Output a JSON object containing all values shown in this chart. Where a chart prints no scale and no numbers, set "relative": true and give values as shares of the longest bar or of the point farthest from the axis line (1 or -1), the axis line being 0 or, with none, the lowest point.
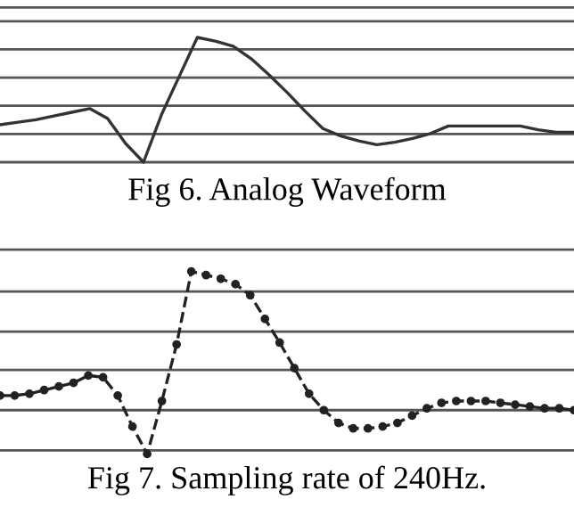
{
  "chart_data": [
    {
      "type": "line",
      "title": "Fig 6. Analog Waveform",
      "relative": true,
      "grid": "y",
      "marker": "none",
      "line_style": "solid",
      "categories": [
        null,
        null,
        null,
        null,
        null,
        null,
        null,
        null,
        null,
        null,
        null,
        null,
        null,
        null,
        null,
        null,
        null,
        null,
        null,
        null,
        null,
        null,
        null,
        null,
        null,
        null,
        null,
        null,
        null,
        null,
        null,
        null,
        null
      ],
      "series": [
        {
          "color": "#333333",
          "values": [
            0.3,
            0.32,
            0.34,
            0.37,
            0.4,
            0.43,
            0.35,
            0.15,
            0.0,
            0.38,
            0.69,
            1.0,
            0.97,
            0.93,
            0.83,
            0.7,
            0.56,
            0.41,
            0.27,
            0.21,
            0.17,
            0.14,
            0.16,
            0.19,
            0.23,
            0.29,
            0.29,
            0.29,
            0.29,
            0.29,
            0.26,
            0.24,
            0.24
          ]
        }
      ]
    },
    {
      "type": "line",
      "title": "Fig 7. Sampling rate of 240Hz.",
      "relative": true,
      "grid": "y",
      "marker": "circle",
      "line_style": "dashed",
      "categories": [
        null,
        null,
        null,
        null,
        null,
        null,
        null,
        null,
        null,
        null,
        null,
        null,
        null,
        null,
        null,
        null,
        null,
        null,
        null,
        null,
        null,
        null,
        null,
        null,
        null,
        null,
        null,
        null,
        null,
        null,
        null,
        null,
        null,
        null,
        null,
        null,
        null,
        null,
        null,
        null
      ],
      "series": [
        {
          "color": "#222222",
          "values": [
            0.32,
            0.32,
            0.33,
            0.35,
            0.37,
            0.39,
            0.43,
            0.42,
            0.32,
            0.15,
            0.0,
            0.29,
            0.6,
            1.0,
            0.98,
            0.96,
            0.93,
            0.87,
            0.74,
            0.61,
            0.47,
            0.33,
            0.24,
            0.17,
            0.14,
            0.14,
            0.15,
            0.17,
            0.21,
            0.25,
            0.28,
            0.29,
            0.29,
            0.29,
            0.28,
            0.27,
            0.26,
            0.25,
            0.25,
            0.24
          ]
        }
      ]
    }
  ]
}
